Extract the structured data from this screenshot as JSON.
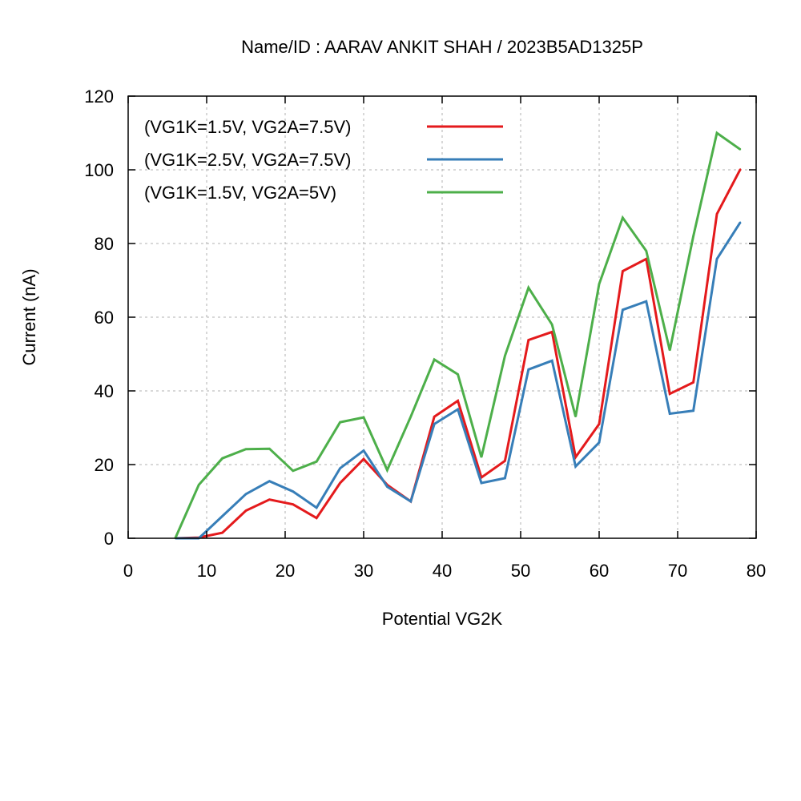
{
  "chart_data": {
    "type": "line",
    "title": "Name/ID : AARAV ANKIT SHAH / 2023B5AD1325P",
    "xlabel": "Potential VG2K",
    "ylabel": "Current (nA)",
    "xlim": [
      0,
      80
    ],
    "ylim": [
      0,
      120
    ],
    "xticks": [
      0,
      10,
      20,
      30,
      40,
      50,
      60,
      70,
      80
    ],
    "yticks": [
      0,
      20,
      40,
      60,
      80,
      100,
      120
    ],
    "grid": true,
    "legend_position": "top-left",
    "x": [
      6,
      9,
      12,
      15,
      18,
      21,
      24,
      27,
      30,
      33,
      36,
      39,
      42,
      45,
      48,
      51,
      54,
      57,
      60,
      63,
      66,
      69,
      72,
      75,
      78
    ],
    "series": [
      {
        "name": "(VG1K=1.5V, VG2A=7.5V)",
        "color": "#e41a1c",
        "values": [
          0,
          0.2,
          1.5,
          7.5,
          10.5,
          9.2,
          5.5,
          15,
          21.5,
          14.5,
          10,
          33,
          37.3,
          16.5,
          21,
          53.8,
          56,
          22,
          31,
          72.5,
          75.8,
          39.2,
          42.3,
          88,
          100.2
        ]
      },
      {
        "name": "(VG1K=2.5V, VG2A=7.5V)",
        "color": "#377eb8",
        "values": [
          0,
          0,
          6,
          12,
          15.5,
          12.7,
          8.3,
          19,
          23.8,
          14,
          10,
          31,
          35,
          15,
          16.3,
          45.8,
          48.2,
          19.5,
          26,
          62,
          64.3,
          33.8,
          34.6,
          75.8,
          85.8
        ]
      },
      {
        "name": "(VG1K=1.5V, VG2A=5V)",
        "color": "#4daf4a",
        "values": [
          0,
          14.5,
          21.7,
          24.2,
          24.3,
          18.3,
          20.8,
          31.5,
          32.8,
          18.5,
          33,
          48.5,
          44.5,
          22,
          49.5,
          68,
          58,
          33,
          69,
          87,
          78,
          51,
          82,
          110,
          105.5
        ]
      }
    ]
  }
}
